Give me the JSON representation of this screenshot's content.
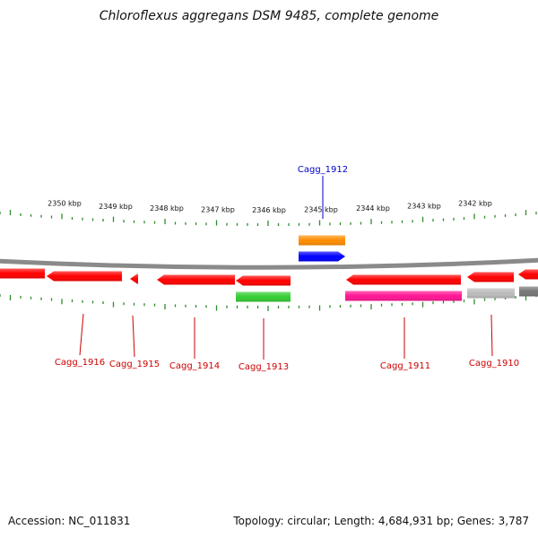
{
  "title": "Chloroflexus aggregans DSM 9485, complete genome",
  "footer": {
    "accession": "Accession: NC_011831",
    "summary": "Topology: circular; Length: 4,684,931 bp; Genes: 3,787"
  },
  "colors": {
    "tick": "#2e8b2e",
    "backbone": "#888888",
    "label_red": "#cc0000",
    "label_blue": "#0000cc"
  },
  "scale_labels": [
    "2350 kbp",
    "2349 kbp",
    "2348 kbp",
    "2347 kbp",
    "2346 kbp",
    "2345 kbp",
    "2344 kbp",
    "2343 kbp",
    "2342 kbp"
  ],
  "features": [
    {
      "id": "f1",
      "strand": "minus",
      "row": "inner",
      "color": "#ff0000"
    },
    {
      "id": "f2",
      "strand": "minus",
      "row": "inner",
      "color": "#ff0000"
    },
    {
      "id": "f3",
      "strand": "minus",
      "row": "inner",
      "color": "#ff0000"
    },
    {
      "id": "f4",
      "strand": "minus",
      "row": "inner",
      "color": "#ff0000"
    },
    {
      "id": "f5",
      "strand": "minus",
      "row": "inner",
      "color": "#ff0000"
    },
    {
      "id": "f6",
      "strand": "minus",
      "row": "inner2",
      "color": "#33cc33"
    },
    {
      "id": "f7",
      "strand": "minus",
      "row": "inner",
      "color": "#ff0000"
    },
    {
      "id": "f8",
      "strand": "minus",
      "row": "inner2",
      "color": "#ff1493"
    },
    {
      "id": "f9",
      "strand": "minus",
      "row": "inner",
      "color": "#ff0000"
    },
    {
      "id": "f10",
      "strand": "minus",
      "row": "inner2",
      "color": "#bbbbbb"
    },
    {
      "id": "f11",
      "strand": "minus",
      "row": "inner",
      "color": "#ff0000"
    },
    {
      "id": "f12",
      "strand": "minus",
      "row": "inner2",
      "color": "#777777"
    },
    {
      "id": "f13",
      "strand": "plus",
      "row": "outer2",
      "color": "#ff8c00"
    },
    {
      "id": "f14",
      "strand": "plus",
      "row": "outer",
      "color": "#0000ff"
    }
  ],
  "gene_labels": [
    {
      "text": "Cagg_1912",
      "color": "#0000cc"
    },
    {
      "text": "Cagg_1916",
      "color": "#cc0000"
    },
    {
      "text": "Cagg_1915",
      "color": "#cc0000"
    },
    {
      "text": "Cagg_1914",
      "color": "#cc0000"
    },
    {
      "text": "Cagg_1913",
      "color": "#cc0000"
    },
    {
      "text": "Cagg_1911",
      "color": "#cc0000"
    },
    {
      "text": "Cagg_1910",
      "color": "#cc0000"
    }
  ]
}
